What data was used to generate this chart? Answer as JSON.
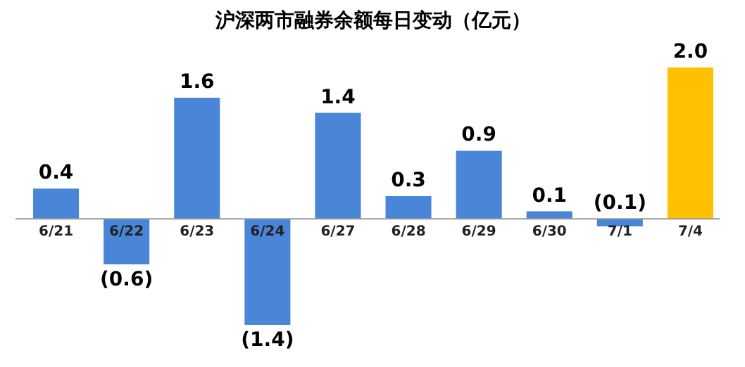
{
  "chart_data": {
    "type": "bar",
    "title": "沪深两市融券余额每日变动（亿元）",
    "categories": [
      "6/21",
      "6/22",
      "6/23",
      "6/24",
      "6/27",
      "6/28",
      "6/29",
      "6/30",
      "7/1",
      "7/4"
    ],
    "values": [
      0.4,
      -0.6,
      1.6,
      -1.4,
      1.4,
      0.3,
      0.9,
      0.1,
      -0.1,
      2.0
    ],
    "colors": [
      "#4a86d8",
      "#4a86d8",
      "#4a86d8",
      "#4a86d8",
      "#4a86d8",
      "#4a86d8",
      "#4a86d8",
      "#4a86d8",
      "#4a86d8",
      "#ffc000"
    ],
    "value_labels": [
      "0.4",
      "(0.6)",
      "1.6",
      "(1.4)",
      "1.4",
      "0.3",
      "0.9",
      "0.1",
      "(0.1)",
      "2.0"
    ]
  }
}
